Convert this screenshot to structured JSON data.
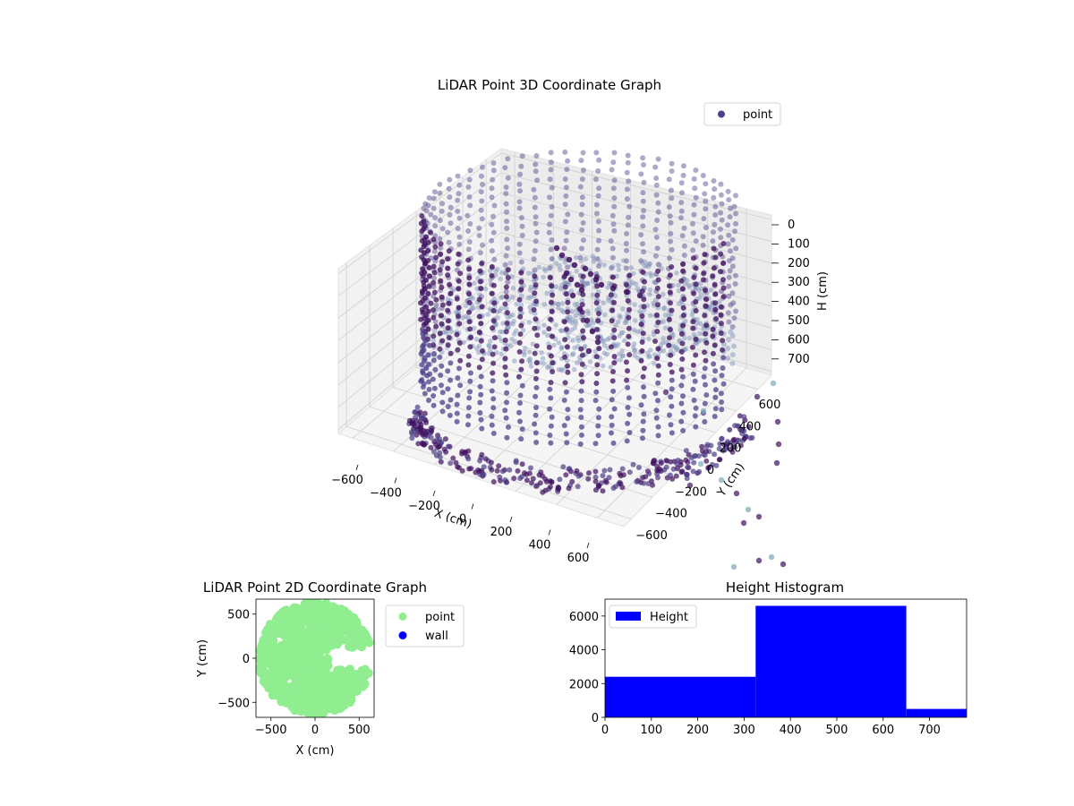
{
  "colors": {
    "cloud_dark": "#3e0f5e",
    "cloud_mid": "#4d3f88",
    "cloud_light": "#7b8fb6",
    "cloud_teal": "#7aaab6",
    "point_2d": "#90ee90",
    "wall_2d": "#0000ff",
    "histogram": "#0000ff",
    "pane": "#f2f2f2",
    "grid": "#d0d0d0"
  },
  "chart_data": [
    {
      "type": "scatter",
      "projection": "3d",
      "title": "LiDAR Point 3D Coordinate Graph",
      "xlabel": "X (cm)",
      "ylabel": "Y (cm)",
      "zlabel": "H (cm)",
      "xticks": [
        "−600",
        "−400",
        "−200",
        "0",
        "200",
        "400",
        "600"
      ],
      "yticks": [
        "−600",
        "−400",
        "−200",
        "0",
        "200",
        "400",
        "600"
      ],
      "zticks": [
        "0",
        "100",
        "200",
        "300",
        "400",
        "500",
        "600",
        "700"
      ],
      "xlim": [
        -650,
        650
      ],
      "ylim": [
        -650,
        650
      ],
      "zlim": [
        780,
        0
      ],
      "z_inverted": true,
      "grid": true,
      "legend": {
        "position": "upper-right",
        "entries": [
          {
            "name": "point"
          }
        ]
      },
      "description_shape": "cylindrical wall of points, radius about 600 cm, heights 0 to 780 cm, with a gap on the +x side and a sloped floor cone"
    },
    {
      "type": "scatter",
      "title": "LiDAR Point 2D Coordinate Graph",
      "xlabel": "X (cm)",
      "ylabel": "Y (cm)",
      "xticks": [
        "−500",
        "0",
        "500"
      ],
      "yticks": [
        "−500",
        "0",
        "500"
      ],
      "xlim": [
        -670,
        670
      ],
      "ylim": [
        -670,
        670
      ],
      "legend": {
        "position": "outside-right",
        "entries": [
          {
            "name": "point"
          },
          {
            "name": "wall"
          }
        ]
      }
    },
    {
      "type": "bar",
      "title": "Height Histogram",
      "bins": [
        [
          0,
          325
        ],
        [
          325,
          650
        ],
        [
          650,
          780
        ]
      ],
      "values": [
        2400,
        6600,
        500
      ],
      "xticks": [
        "0",
        "100",
        "200",
        "300",
        "400",
        "500",
        "600",
        "700"
      ],
      "yticks": [
        "0",
        "2000",
        "4000",
        "6000"
      ],
      "xlim": [
        0,
        780
      ],
      "ylim": [
        0,
        7000
      ],
      "legend": {
        "position": "upper-left",
        "entries": [
          {
            "name": "Height"
          }
        ]
      }
    }
  ]
}
